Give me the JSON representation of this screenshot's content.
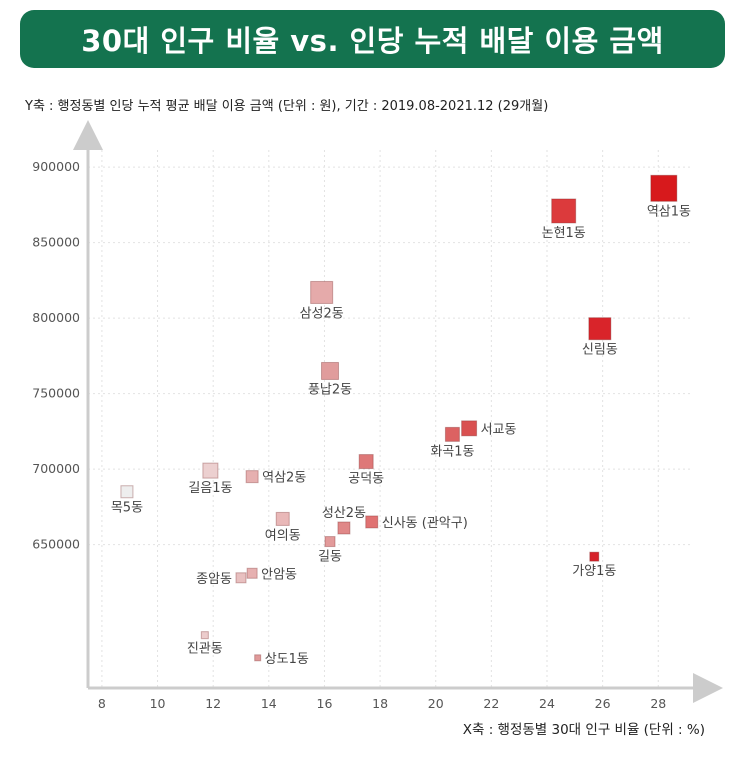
{
  "title": "30대 인구 비율 vs. 인당 누적 배달 이용 금액",
  "chart_data": {
    "type": "scatter",
    "ylabel": "Y축 : 행정동별 인당 누적 평균 배달 이용 금액 (단위 : 원), 기간 : 2019.08-2021.12 (29개월)",
    "xlabel": "X축 : 행정동별 30대 인구 비율 (단위 : %)",
    "xlim": [
      7.5,
      29.5
    ],
    "ylim": [
      555000,
      918000
    ],
    "x_ticks": [
      8,
      10,
      12,
      14,
      16,
      18,
      20,
      22,
      24,
      26,
      28
    ],
    "y_ticks": [
      650000,
      700000,
      750000,
      800000,
      850000,
      900000
    ],
    "y_tick_labels": [
      "650000",
      "700000",
      "750000",
      "800000",
      "850000",
      "900000"
    ],
    "grid": true,
    "points": [
      {
        "label": "역삼1동",
        "x": 28.2,
        "y": 886000,
        "size": 26,
        "color": "#d7191c",
        "lx": 0,
        "ly": 1,
        "anchor": "start"
      },
      {
        "label": "논현1동",
        "x": 24.6,
        "y": 871000,
        "size": 24,
        "color": "#dc3a3c",
        "lx": 0,
        "ly": 1,
        "anchor": "middle"
      },
      {
        "label": "신림동",
        "x": 25.9,
        "y": 793000,
        "size": 22,
        "color": "#d9242a",
        "lx": 0,
        "ly": 1,
        "anchor": "middle"
      },
      {
        "label": "삼성2동",
        "x": 15.9,
        "y": 817000,
        "size": 22,
        "color": "#e5aaaa",
        "lx": 0,
        "ly": 1,
        "anchor": "middle"
      },
      {
        "label": "풍납2동",
        "x": 16.2,
        "y": 765000,
        "size": 17,
        "color": "#e09c9c",
        "lx": 0,
        "ly": 1,
        "anchor": "middle"
      },
      {
        "label": "서교동",
        "x": 21.2,
        "y": 727000,
        "size": 15,
        "color": "#d95050",
        "lx": 1,
        "ly": 0,
        "anchor": "start"
      },
      {
        "label": "화곡1동",
        "x": 20.6,
        "y": 723000,
        "size": 14,
        "color": "#dc6262",
        "lx": 0,
        "ly": 1,
        "anchor": "middle"
      },
      {
        "label": "공덕동",
        "x": 17.5,
        "y": 705000,
        "size": 14,
        "color": "#de7878",
        "lx": 0,
        "ly": 1,
        "anchor": "middle"
      },
      {
        "label": "길음1동",
        "x": 11.9,
        "y": 699000,
        "size": 15,
        "color": "#ecd0d0",
        "lx": 0,
        "ly": 1,
        "anchor": "middle"
      },
      {
        "label": "역삼2동",
        "x": 13.4,
        "y": 695000,
        "size": 12,
        "color": "#e6b0b0",
        "lx": 1,
        "ly": 0,
        "anchor": "start"
      },
      {
        "label": "목5동",
        "x": 8.9,
        "y": 685000,
        "size": 12,
        "color": "#eeeeee",
        "lx": 0,
        "ly": 1,
        "anchor": "middle"
      },
      {
        "label": "여의동",
        "x": 14.5,
        "y": 667000,
        "size": 13,
        "color": "#e9b8b8",
        "lx": 0,
        "ly": 1,
        "anchor": "middle"
      },
      {
        "label": "성산2동",
        "x": 16.7,
        "y": 661000,
        "size": 12,
        "color": "#e08888",
        "lx": 0,
        "ly": -1,
        "anchor": "middle"
      },
      {
        "label": "신사동 (관악구)",
        "x": 17.7,
        "y": 665000,
        "size": 12,
        "color": "#e07272",
        "lx": 1,
        "ly": 0,
        "anchor": "start"
      },
      {
        "label": "길동",
        "x": 16.2,
        "y": 652000,
        "size": 10,
        "color": "#e29a9a",
        "lx": 0,
        "ly": 1,
        "anchor": "middle"
      },
      {
        "label": "가양1동",
        "x": 25.7,
        "y": 642000,
        "size": 9,
        "color": "#d6222a",
        "lx": 0,
        "ly": 1,
        "anchor": "middle"
      },
      {
        "label": "안암동",
        "x": 13.4,
        "y": 631000,
        "size": 10,
        "color": "#e6b0b0",
        "lx": 1,
        "ly": 0,
        "anchor": "start"
      },
      {
        "label": "종암동",
        "x": 13.0,
        "y": 628000,
        "size": 10,
        "color": "#e8c0c0",
        "lx": -1,
        "ly": 0,
        "anchor": "end"
      },
      {
        "label": "진관동",
        "x": 11.7,
        "y": 590000,
        "size": 7,
        "color": "#eccccc",
        "lx": 0,
        "ly": 1,
        "anchor": "middle"
      },
      {
        "label": "상도1동",
        "x": 13.6,
        "y": 575000,
        "size": 6,
        "color": "#e09a9a",
        "lx": 1,
        "ly": 0,
        "anchor": "start"
      }
    ]
  }
}
